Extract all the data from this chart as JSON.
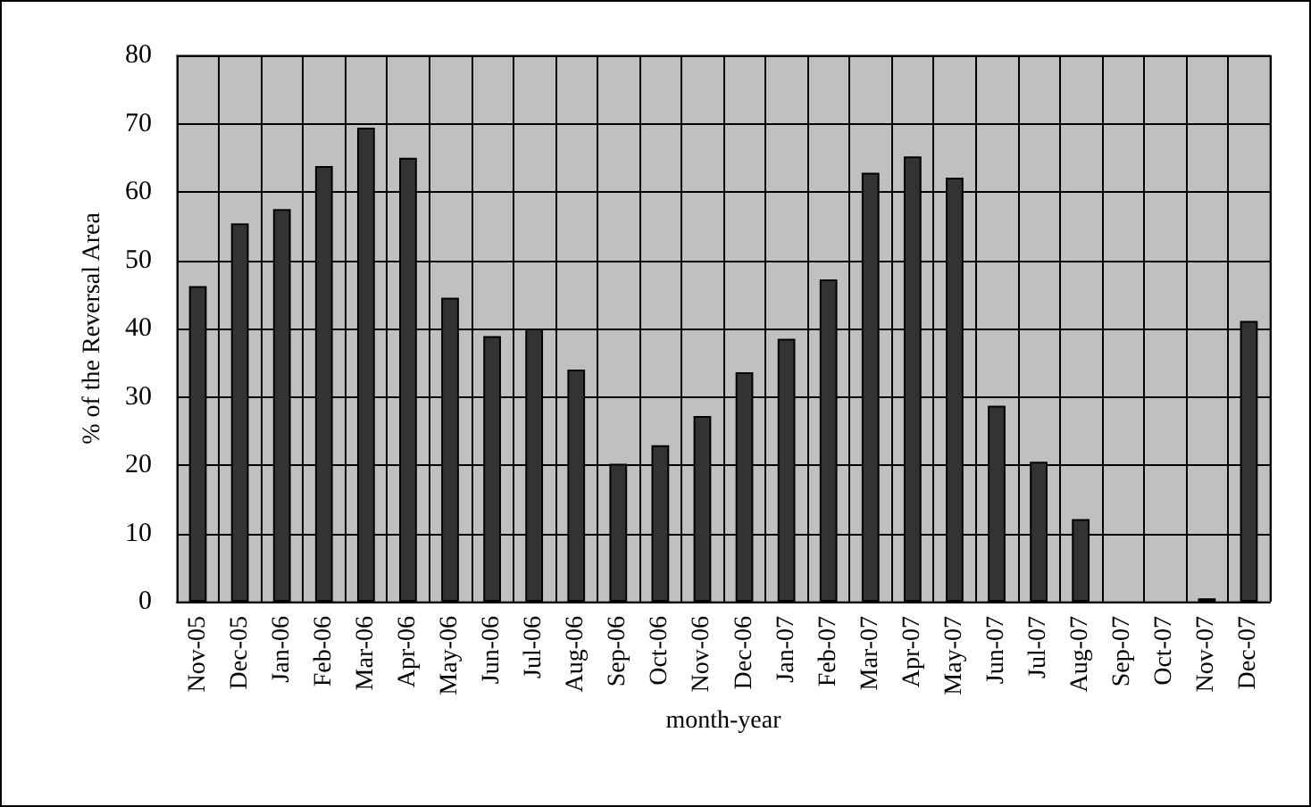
{
  "chart_data": {
    "type": "bar",
    "xlabel": "month-year",
    "ylabel": "% of the Reversal Area",
    "categories": [
      "Nov-05",
      "Dec-05",
      "Jan-06",
      "Feb-06",
      "Mar-06",
      "Apr-06",
      "May-06",
      "Jun-06",
      "Jul-06",
      "Aug-06",
      "Sep-06",
      "Oct-06",
      "Nov-06",
      "Dec-06",
      "Jan-07",
      "Feb-07",
      "Mar-07",
      "Apr-07",
      "May-07",
      "Jun-07",
      "Jul-07",
      "Aug-07",
      "Sep-07",
      "Oct-07",
      "Nov-07",
      "Dec-07"
    ],
    "values": [
      46.2,
      55.4,
      57.5,
      63.8,
      69.4,
      65,
      44.5,
      38.9,
      40,
      34,
      20.2,
      22.9,
      27.2,
      33.6,
      38.5,
      47.2,
      62.8,
      65.2,
      62.1,
      28.7,
      20.5,
      12.1,
      null,
      null,
      0.5,
      41.1
    ],
    "color": "#333333",
    "ylim": [
      0,
      80
    ],
    "yticks": [
      0,
      10,
      20,
      30,
      40,
      50,
      60,
      70,
      80
    ],
    "grid": true
  }
}
